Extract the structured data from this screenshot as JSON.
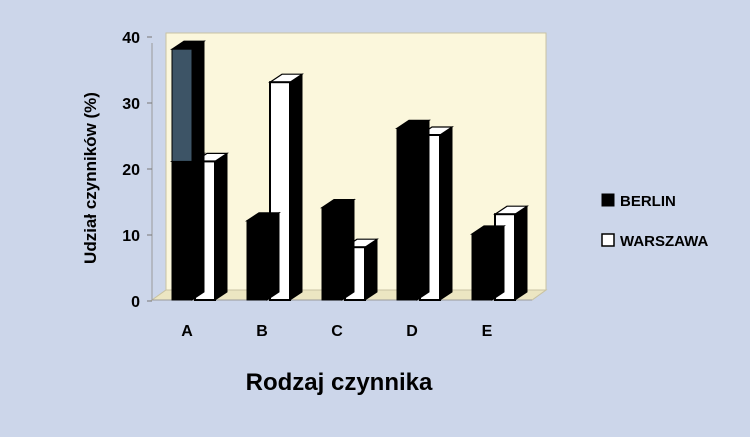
{
  "colors": {
    "background": "#ccd6ea",
    "plot_back": "#fbf7dc",
    "plot_floor": "#ece6c2",
    "berlin": "#000000",
    "warszawa": "#ffffff",
    "highlight": "#3d5466"
  },
  "chart_data": {
    "type": "bar",
    "categories": [
      "A",
      "B",
      "C",
      "D",
      "E"
    ],
    "series": [
      {
        "name": "BERLIN",
        "values": [
          21,
          12,
          14,
          26,
          10
        ]
      },
      {
        "name": "WARSZAWA",
        "values": [
          21,
          33,
          8,
          25,
          13
        ]
      }
    ],
    "highlight_segment": {
      "category": "A",
      "series": "BERLIN",
      "from": 21,
      "to": 38
    },
    "title": "",
    "xlabel": "Rodzaj czynnika",
    "ylabel": "Udział czynników (%)",
    "ylim": [
      0,
      40
    ],
    "yticks": [
      0,
      10,
      20,
      30,
      40
    ],
    "legend_position": "right",
    "grid": false,
    "style": "3d-bars"
  }
}
